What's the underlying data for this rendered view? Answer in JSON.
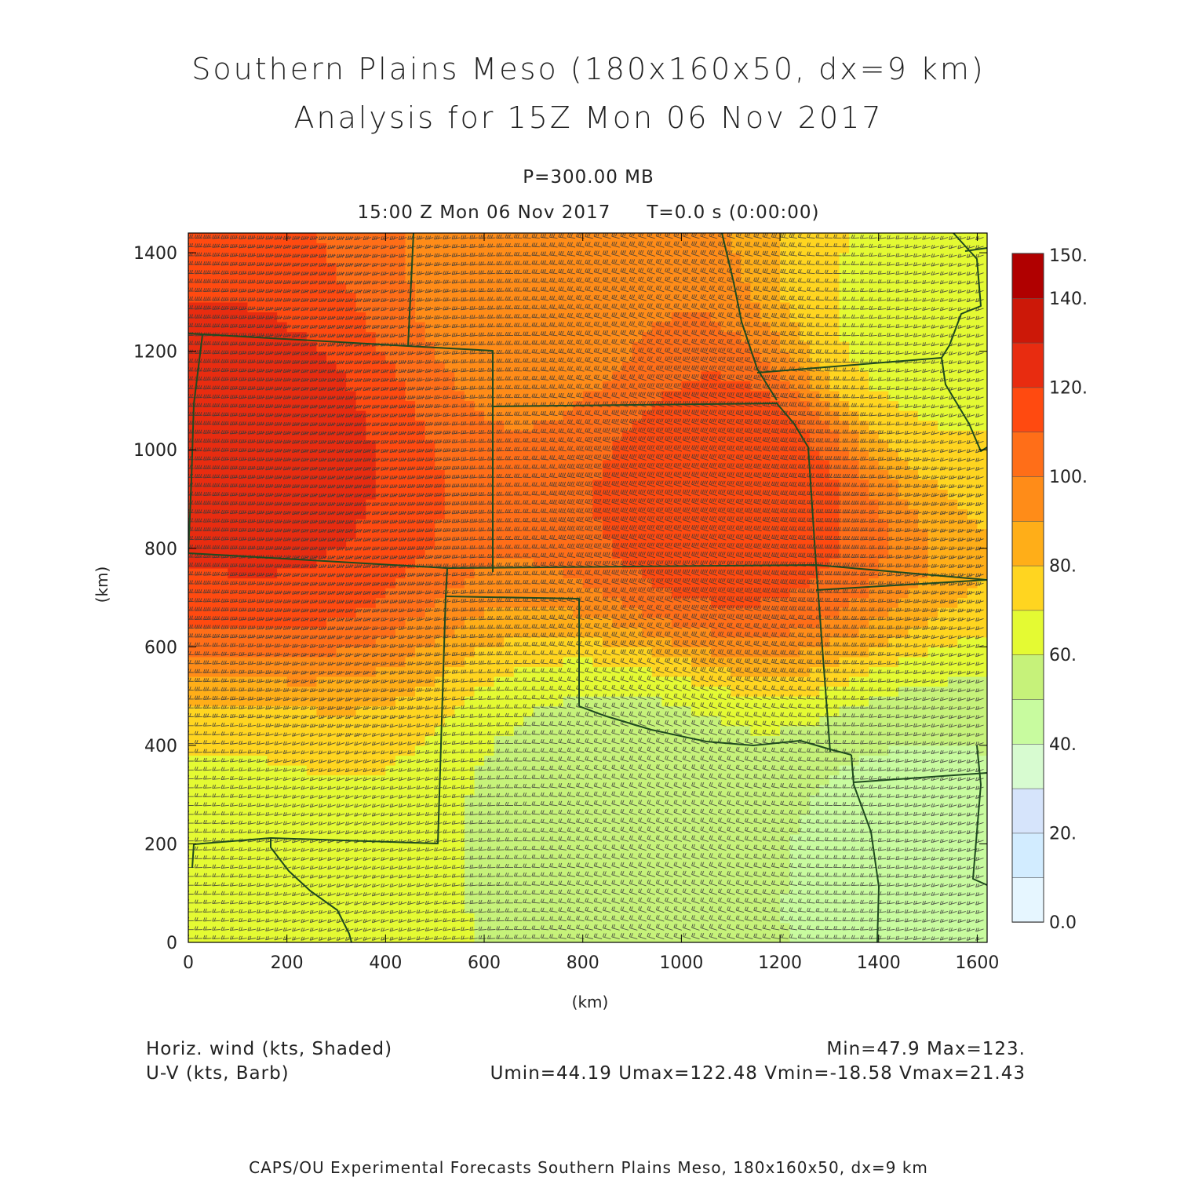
{
  "header": {
    "title_line1": "Southern Plains Meso (180x160x50, dx=9 km)",
    "title_line2": "Analysis for 15Z Mon 06 Nov 2017",
    "level": "P=300.00 MB",
    "valid_time": "15:00 Z Mon 06 Nov 2017",
    "run_time": "T=0.0 s (0:00:00)"
  },
  "chart_data": {
    "type": "heatmap",
    "title": "Southern Plains Meso (180x160x50, dx=9 km)",
    "xlabel": "(km)",
    "ylabel": "(km)",
    "xlim": [
      0,
      1620
    ],
    "ylim": [
      0,
      1440
    ],
    "x_ticks": [
      "0",
      "200",
      "400",
      "600",
      "800",
      "1000",
      "1200",
      "1400",
      "1600"
    ],
    "y_ticks": [
      "0",
      "200",
      "400",
      "600",
      "800",
      "1000",
      "1200",
      "1400"
    ],
    "colorbar": {
      "labels": [
        "0.0",
        "20.",
        "40.",
        "60.",
        "80.",
        "100.",
        "120.",
        "140.",
        "150."
      ],
      "levels": [
        0,
        10,
        20,
        30,
        40,
        50,
        60,
        70,
        80,
        90,
        100,
        110,
        120,
        130,
        140,
        150
      ],
      "colors": [
        "#e6f6ff",
        "#d2ecff",
        "#d6e4fb",
        "#d7fbd0",
        "#c8fb9f",
        "#c6f27a",
        "#e4fa33",
        "#ffd520",
        "#ffae18",
        "#ff8c18",
        "#ff6e18",
        "#ff4a10",
        "#e82c10",
        "#cc1808",
        "#b00000"
      ]
    },
    "field": "Horiz. wind (kts, Shaded)",
    "vectors": "U-V (kts, Barb)",
    "wind_field_samples": [
      {
        "x": 150,
        "y": 1000,
        "speed": 122
      },
      {
        "x": 1100,
        "y": 920,
        "speed": 115
      },
      {
        "x": 700,
        "y": 1300,
        "speed": 98
      },
      {
        "x": 1500,
        "y": 1250,
        "speed": 68
      },
      {
        "x": 900,
        "y": 250,
        "speed": 55
      },
      {
        "x": 1450,
        "y": 150,
        "speed": 48
      },
      {
        "x": 80,
        "y": 100,
        "speed": 68
      }
    ],
    "stats": {
      "min": "Min=47.9",
      "max": "Max=123.",
      "uv": "Umin=44.19 Umax=122.48 Vmin=-18.58 Vmax=21.43"
    }
  },
  "footer": {
    "legend_line1": "Horiz. wind (kts, Shaded)",
    "legend_line2": "U-V (kts, Barb)",
    "minmax": "Min=47.9 Max=123.",
    "uv_stats": "Umin=44.19 Umax=122.48 Vmin=-18.58 Vmax=21.43",
    "credit": "CAPS/OU Experimental Forecasts Southern Plains Meso, 180x160x50, dx=9 km"
  },
  "colors": {
    "boundary": "#1f4a1f",
    "barb": "#3a3a3a",
    "frame": "#000000"
  }
}
